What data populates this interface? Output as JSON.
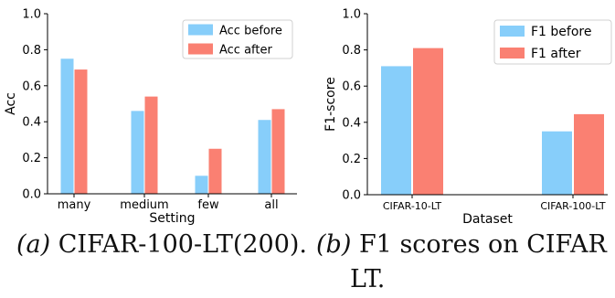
{
  "chart_data": [
    {
      "type": "bar",
      "xlabel": "Setting",
      "ylabel": "Acc",
      "ylim": [
        0,
        1.0
      ],
      "yticks": [
        "0.0",
        "0.2",
        "0.4",
        "0.6",
        "0.8",
        "1.0"
      ],
      "categories": [
        "many",
        "medium",
        "few",
        "all"
      ],
      "series": [
        {
          "name": "Acc before",
          "values": [
            0.75,
            0.46,
            0.1,
            0.41
          ]
        },
        {
          "name": "Acc after",
          "values": [
            0.69,
            0.54,
            0.25,
            0.47
          ]
        }
      ],
      "legend_position": "top-right",
      "colors": [
        "#87CEFA",
        "#FA8072"
      ]
    },
    {
      "type": "bar",
      "xlabel": "Dataset",
      "ylabel": "F1-score",
      "ylim": [
        0,
        1.0
      ],
      "yticks": [
        "0.0",
        "0.2",
        "0.4",
        "0.6",
        "0.8",
        "1.0"
      ],
      "categories": [
        "CIFAR-10-LT",
        "CIFAR-100-LT"
      ],
      "series": [
        {
          "name": "F1 before",
          "values": [
            0.71,
            0.35
          ]
        },
        {
          "name": "F1 after",
          "values": [
            0.81,
            0.445
          ]
        }
      ],
      "legend_position": "top-right",
      "colors": [
        "#87CEFA",
        "#FA8072"
      ]
    }
  ],
  "captions": {
    "a": {
      "label": "(a)",
      "text": "CIFAR-100-LT(200)."
    },
    "b": {
      "label": "(b)",
      "text": "F1  scores  on  CIFAR",
      "line2": "LT."
    }
  }
}
